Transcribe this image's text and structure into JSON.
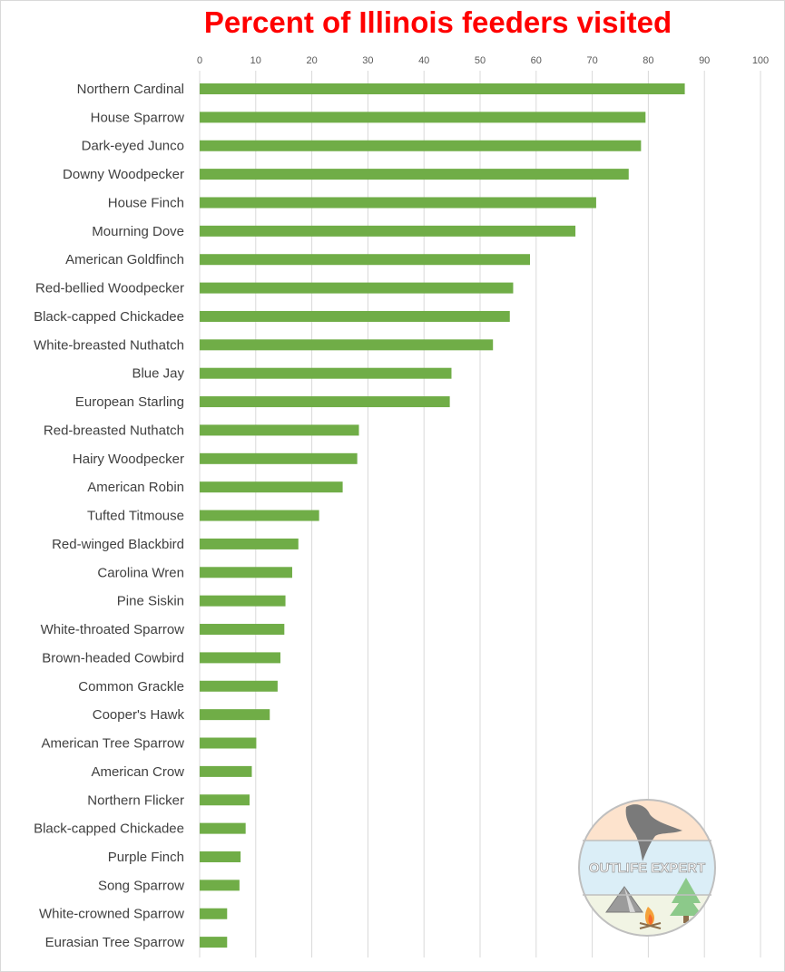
{
  "chart_data": {
    "type": "bar",
    "orientation": "horizontal",
    "title": "Percent of Illinois feeders visited",
    "xlabel": "",
    "ylabel": "",
    "xlim": [
      0,
      100
    ],
    "x_ticks": [
      0,
      10,
      20,
      30,
      40,
      50,
      60,
      70,
      80,
      90,
      100
    ],
    "x_tick_labels": [
      "0",
      "10",
      "20",
      "30",
      "40",
      "50",
      "60",
      "70",
      "80",
      "90",
      "100"
    ],
    "x_axis_position": "top",
    "grid": true,
    "legend": "none",
    "bar_color": "#70ad47",
    "categories": [
      "Northern Cardinal",
      "House Sparrow",
      "Dark-eyed Junco",
      "Downy Woodpecker",
      "House Finch",
      "Mourning Dove",
      "American Goldfinch",
      "Red-bellied Woodpecker",
      "Black-capped Chickadee",
      "White-breasted Nuthatch",
      "Blue Jay",
      "European Starling",
      "Red-breasted Nuthatch",
      "Hairy Woodpecker",
      "American Robin",
      "Tufted Titmouse",
      "Red-winged Blackbird",
      "Carolina Wren",
      "Pine Siskin",
      "White-throated Sparrow",
      "Brown-headed Cowbird",
      "Common Grackle",
      "Cooper's Hawk",
      "American Tree Sparrow",
      "American Crow",
      "Northern Flicker",
      "Black-capped Chickadee",
      "Purple Finch",
      "Song Sparrow",
      "White-crowned Sparrow",
      "Eurasian Tree Sparrow"
    ],
    "values": [
      86.5,
      79.5,
      78.7,
      76.5,
      70.7,
      67.0,
      58.9,
      55.9,
      55.3,
      52.3,
      44.9,
      44.6,
      28.4,
      28.1,
      25.5,
      21.3,
      17.6,
      16.5,
      15.3,
      15.1,
      14.4,
      13.9,
      12.5,
      10.1,
      9.3,
      8.9,
      8.2,
      7.3,
      7.1,
      4.9,
      4.9
    ]
  },
  "watermark": {
    "text": "OUTLIFE EXPERT",
    "colors": {
      "top": "#fde3cd",
      "middle": "#dbeef7",
      "bottom": "#f1f4e4",
      "tree": "#8cc98a",
      "ring": "#bfbfbf"
    }
  }
}
